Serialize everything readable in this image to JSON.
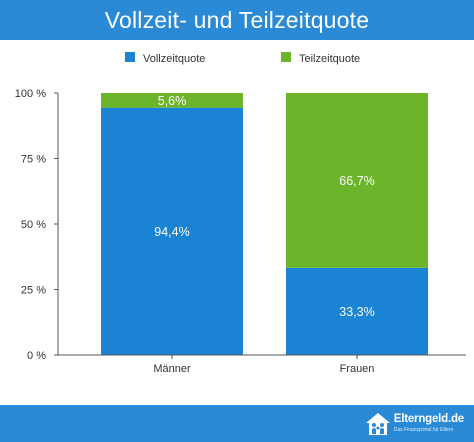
{
  "header": {
    "title": "Vollzeit- und Teilzeitquote"
  },
  "chart_data": {
    "type": "bar",
    "stacked": true,
    "categories": [
      "Männer",
      "Frauen"
    ],
    "series": [
      {
        "name": "Vollzeitquote",
        "color": "#1a83d3",
        "values": [
          94.4,
          33.3
        ],
        "labels": [
          "94,4%",
          "33,3%"
        ]
      },
      {
        "name": "Teilzeitquote",
        "color": "#6cb52a",
        "values": [
          5.6,
          66.7
        ],
        "labels": [
          "5,6%",
          "66,7%"
        ]
      }
    ],
    "ylim": [
      0,
      100
    ],
    "yticks": [
      0,
      25,
      50,
      75,
      100
    ],
    "ytick_labels": [
      "0 %",
      "25 %",
      "50 %",
      "75 %",
      "100 %"
    ],
    "grid": false,
    "legend_position": "top"
  },
  "footer": {
    "logo_name": "Elterngeld.de",
    "logo_tagline": "Das Finanzportal für Eltern",
    "logo_icon": "house-family-icon"
  }
}
